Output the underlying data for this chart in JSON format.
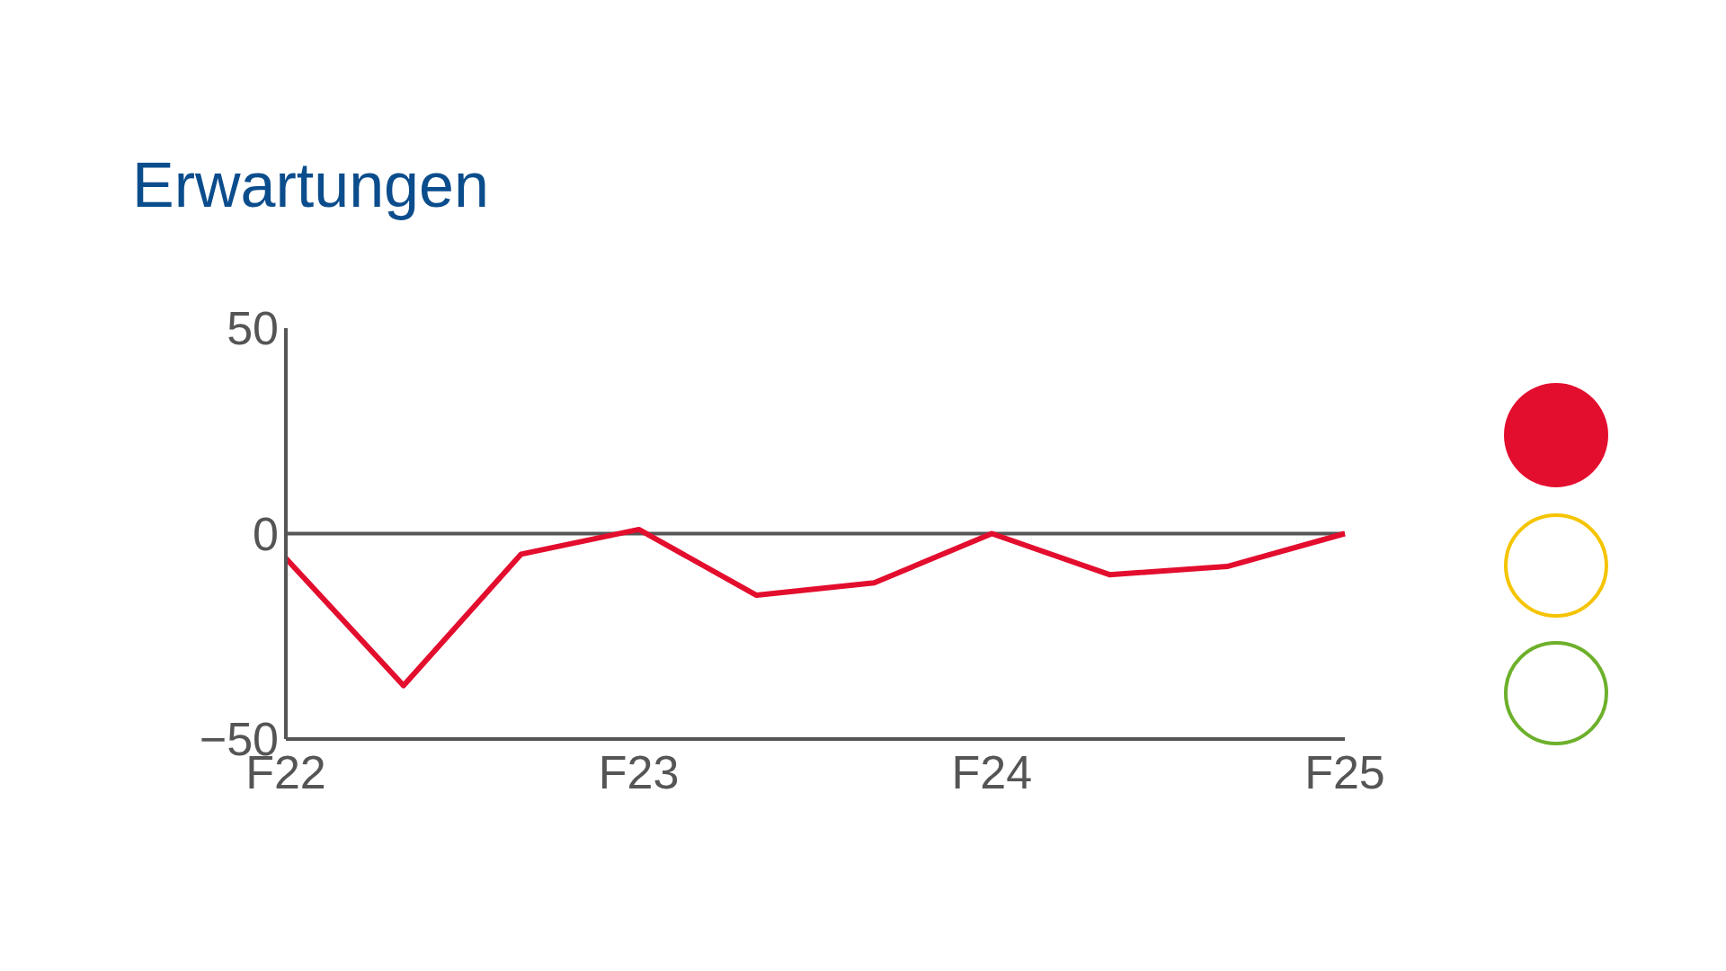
{
  "chart_data": {
    "type": "line",
    "title": "Erwartungen",
    "categories": [
      "F22",
      null,
      null,
      "F23",
      null,
      null,
      "F24",
      null,
      null,
      "F25"
    ],
    "series": [
      {
        "color": "#e30d2e",
        "values": [
          -6,
          -37,
          -5,
          1,
          -15,
          -12,
          0,
          -10,
          -8,
          0
        ]
      }
    ],
    "ylim": [
      -50,
      50
    ],
    "yticks": [
      -50,
      0,
      50
    ],
    "grid": false,
    "legend": false,
    "marker": "none",
    "line_style": "solid",
    "ref_lines": [
      {
        "axis": "y",
        "value": 0,
        "color": "#555555"
      }
    ]
  }
}
